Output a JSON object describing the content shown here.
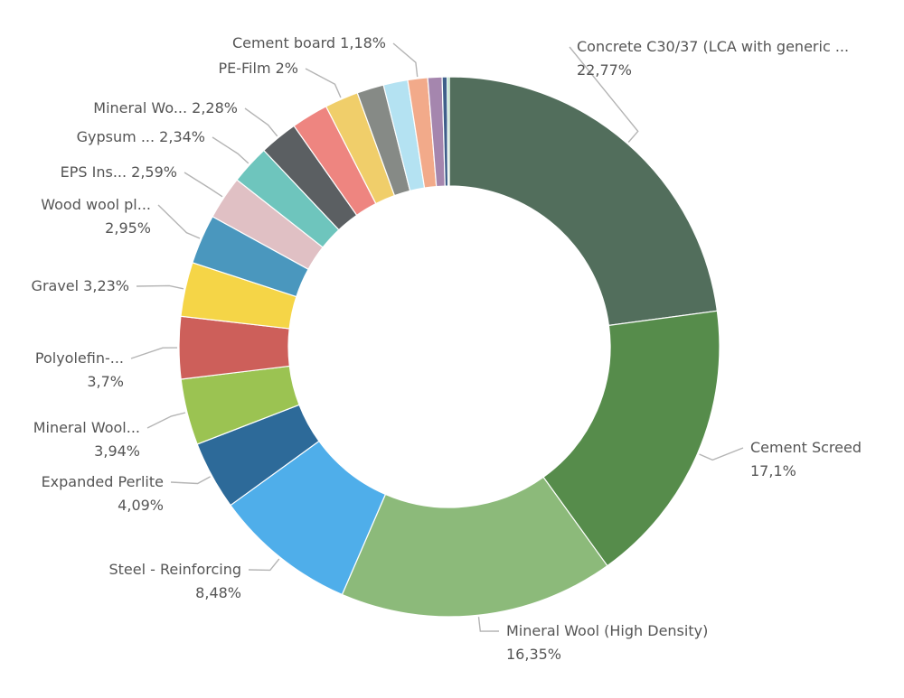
{
  "chart_data": {
    "type": "pie",
    "donut": true,
    "title": "",
    "legend": "none",
    "slices": [
      {
        "label": "Concrete C30/37 (LCA with generic ...",
        "value": 22.77,
        "value_text": "22,77%",
        "color": "#526e5c"
      },
      {
        "label": "Cement Screed",
        "value": 17.1,
        "value_text": "17,1%",
        "color": "#568c4b"
      },
      {
        "label": "Mineral Wool (High Density)",
        "value": 16.35,
        "value_text": "16,35%",
        "color": "#8cba7a"
      },
      {
        "label": "Steel - Reinforcing",
        "value": 8.48,
        "value_text": "8,48%",
        "color": "#4faeea"
      },
      {
        "label": "Expanded Perlite",
        "value": 4.09,
        "value_text": "4,09%",
        "color": "#2d6a99"
      },
      {
        "label": "Mineral Wool...",
        "value": 3.94,
        "value_text": "3,94%",
        "color": "#9bc352"
      },
      {
        "label": "Polyolefin-...",
        "value": 3.7,
        "value_text": "3,7%",
        "color": "#cd5f5a"
      },
      {
        "label": "Gravel",
        "value": 3.23,
        "value_text": "3,23%",
        "color": "#f5d547"
      },
      {
        "label": "Wood wool pl...",
        "value": 2.95,
        "value_text": "2,95%",
        "color": "#4a97be"
      },
      {
        "label": "EPS Ins...",
        "value": 2.59,
        "value_text": "2,59%",
        "color": "#e0c0c4"
      },
      {
        "label": "Gypsum ...",
        "value": 2.34,
        "value_text": "2,34%",
        "color": "#6ec5bd"
      },
      {
        "label": "Mineral Wo...",
        "value": 2.28,
        "value_text": "2,28%",
        "color": "#5b5f62"
      },
      {
        "label": "",
        "value": 2.2,
        "value_text": "",
        "color": "#ee8580"
      },
      {
        "label": "PE-Film",
        "value": 2.0,
        "value_text": "2%",
        "color": "#f0ce6a"
      },
      {
        "label": "",
        "value": 1.6,
        "value_text": "",
        "color": "#868a86"
      },
      {
        "label": "",
        "value": 1.45,
        "value_text": "",
        "color": "#b4e2f2"
      },
      {
        "label": "Cement board",
        "value": 1.18,
        "value_text": "1,18%",
        "color": "#f2aa8a"
      },
      {
        "label": "",
        "value": 0.85,
        "value_text": "",
        "color": "#a586ae"
      },
      {
        "label": "",
        "value": 0.3,
        "value_text": "",
        "color": "#3f5f8a"
      },
      {
        "label": "",
        "value": 0.12,
        "value_text": "",
        "color": "#8fd0a8"
      }
    ]
  }
}
